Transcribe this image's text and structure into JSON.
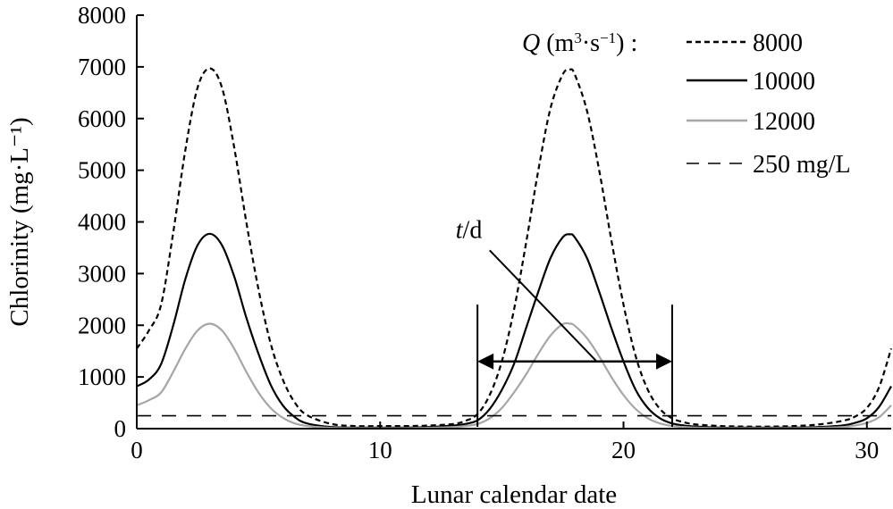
{
  "chart_data": {
    "type": "line",
    "xlabel": "Lunar calendar date",
    "ylabel": "Chlorinity (mg·L⁻¹)",
    "xlim": [
      0,
      31
    ],
    "ylim": [
      0,
      8000
    ],
    "xticks": [
      0,
      10,
      20,
      30
    ],
    "yticks": [
      0,
      1000,
      2000,
      3000,
      4000,
      5000,
      6000,
      7000,
      8000
    ],
    "grid": false,
    "legend_position": "top-right",
    "legend_title": "Q (m³·s⁻¹) :",
    "x": [
      0,
      0.5,
      1,
      1.5,
      2,
      2.5,
      3,
      3.5,
      4,
      4.5,
      5,
      5.5,
      6,
      6.5,
      7,
      8,
      9,
      10,
      11,
      12,
      13,
      13.5,
      14,
      14.5,
      15,
      15.5,
      16,
      16.5,
      17,
      17.5,
      17.8,
      18,
      18.5,
      19,
      19.5,
      20,
      20.5,
      21,
      21.5,
      22,
      22.5,
      23,
      24,
      25,
      26,
      27,
      28,
      29,
      29.5,
      30,
      30.5,
      31
    ],
    "series": [
      {
        "name": "8000",
        "style": "dotted",
        "color": "#000000",
        "values": [
          1550,
          1900,
          2400,
          3800,
          5400,
          6600,
          6970,
          6600,
          5450,
          4000,
          2700,
          1650,
          950,
          500,
          260,
          90,
          50,
          50,
          50,
          60,
          90,
          150,
          280,
          650,
          1300,
          2300,
          3600,
          5000,
          6200,
          6850,
          6950,
          6850,
          6150,
          5000,
          3650,
          2400,
          1400,
          750,
          380,
          200,
          120,
          80,
          50,
          40,
          40,
          50,
          80,
          150,
          230,
          400,
          800,
          1550
        ]
      },
      {
        "name": "10000",
        "style": "solid",
        "color": "#000000",
        "values": [
          820,
          950,
          1250,
          2000,
          2900,
          3550,
          3770,
          3550,
          2950,
          2150,
          1450,
          850,
          450,
          220,
          100,
          30,
          20,
          20,
          20,
          30,
          60,
          90,
          160,
          380,
          750,
          1250,
          1950,
          2650,
          3300,
          3700,
          3760,
          3700,
          3300,
          2650,
          1950,
          1300,
          750,
          400,
          200,
          100,
          60,
          40,
          20,
          20,
          20,
          20,
          30,
          60,
          110,
          200,
          420,
          820
        ]
      },
      {
        "name": "12000",
        "style": "solid",
        "color": "#a6a6a6",
        "values": [
          450,
          550,
          700,
          1100,
          1550,
          1900,
          2030,
          1900,
          1550,
          1100,
          700,
          400,
          210,
          100,
          50,
          15,
          10,
          10,
          10,
          15,
          30,
          50,
          90,
          200,
          400,
          700,
          1050,
          1450,
          1800,
          2020,
          2030,
          1990,
          1750,
          1400,
          1000,
          650,
          380,
          200,
          100,
          50,
          30,
          20,
          10,
          10,
          10,
          10,
          15,
          30,
          60,
          110,
          220,
          450
        ]
      },
      {
        "name": "250 mg/L",
        "style": "dashed",
        "color": "#000000",
        "constant": 250
      }
    ],
    "annotations": {
      "duration_label_italic": "t",
      "duration_label_rest": "/d",
      "interval_start": 14,
      "interval_end": 22,
      "pointer_target": [
        18.9,
        1300
      ],
      "pointer_origin": [
        14.5,
        3450
      ]
    }
  }
}
